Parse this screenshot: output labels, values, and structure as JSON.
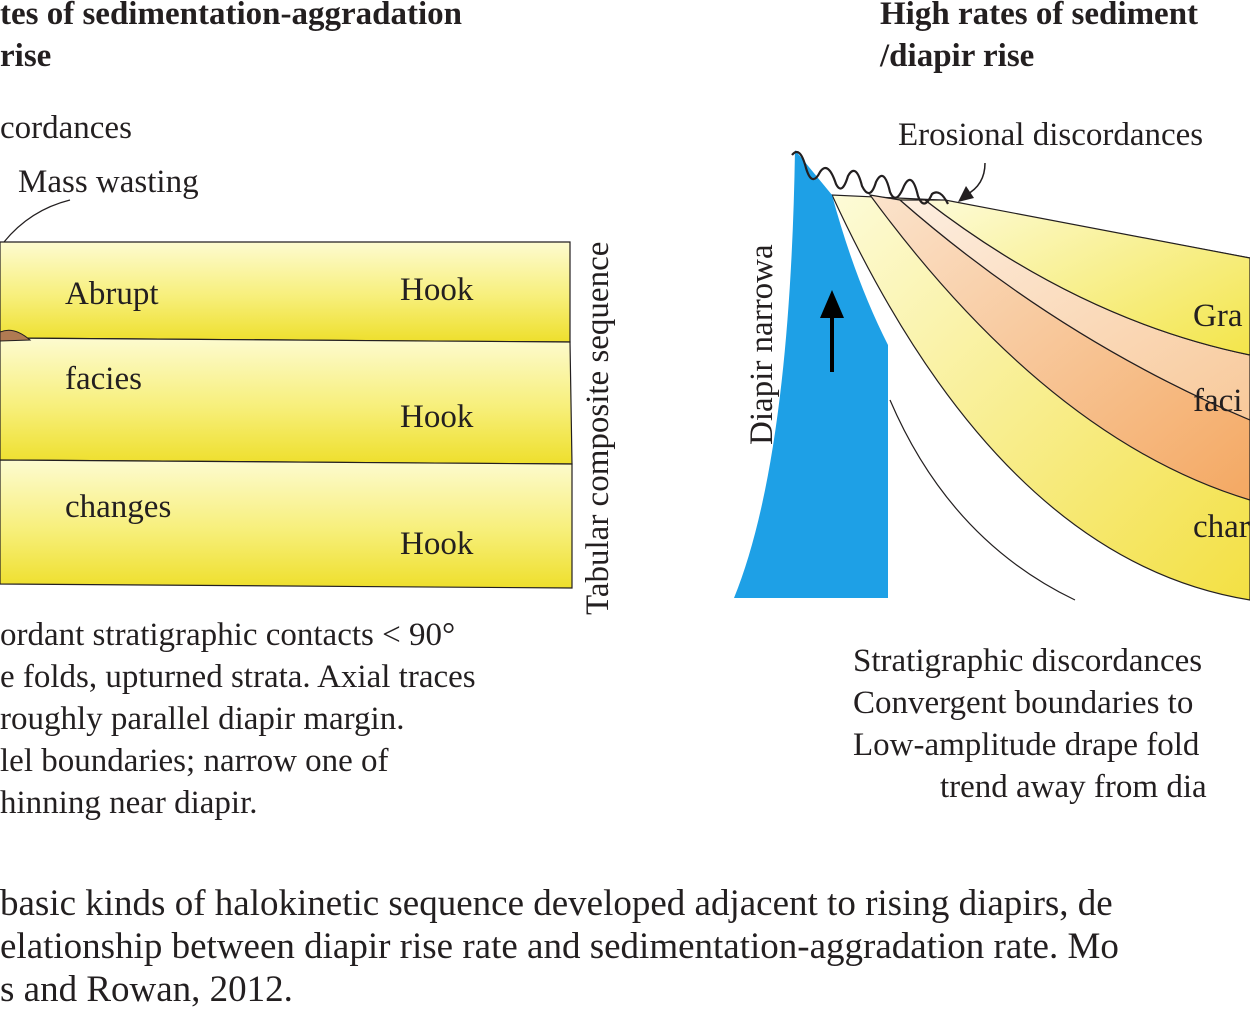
{
  "left_panel": {
    "title_line1": "tes of sedimentation-aggradation",
    "title_line2": "rise",
    "label_discordances": "cordances",
    "label_mass_wasting": "Mass wasting",
    "bed_labels": [
      "Abrupt",
      "facies",
      "changes"
    ],
    "hook_labels": [
      "Hook",
      "Hook",
      "Hook"
    ],
    "sequence_label": "Tabular composite sequence",
    "description": [
      "ordant stratigraphic contacts < 90°",
      "e folds, upturned strata. Axial traces",
      "roughly parallel diapir margin.",
      "lel boundaries; narrow one of",
      "hinning near diapir."
    ]
  },
  "right_panel": {
    "title_line1": "High rates of sediment",
    "title_line2": "/diapir rise",
    "label_erosional": "Erosional discordances",
    "diapir_label": "Diapir narrowa",
    "wedge_labels": [
      "Gra",
      "faci",
      "char"
    ],
    "description": [
      "Stratigraphic discordances",
      "Convergent boundaries to",
      "Low-amplitude drape fold",
      "trend away from dia"
    ]
  },
  "caption": [
    "basic kinds of halokinetic sequence developed adjacent to rising diapirs, de",
    "elationship between diapir rise rate and sedimentation-aggradation rate. Mo",
    "s and Rowan, 2012."
  ],
  "colors": {
    "bed_yellow": "#f4e94a",
    "bed_light": "#fdfbd0",
    "salt_blue": "#1ea0e6",
    "orange_band": "#f4b07a",
    "peach_band": "#f9d3b0",
    "mass_wasting_brown": "#b07a52",
    "text": "#231f20"
  }
}
